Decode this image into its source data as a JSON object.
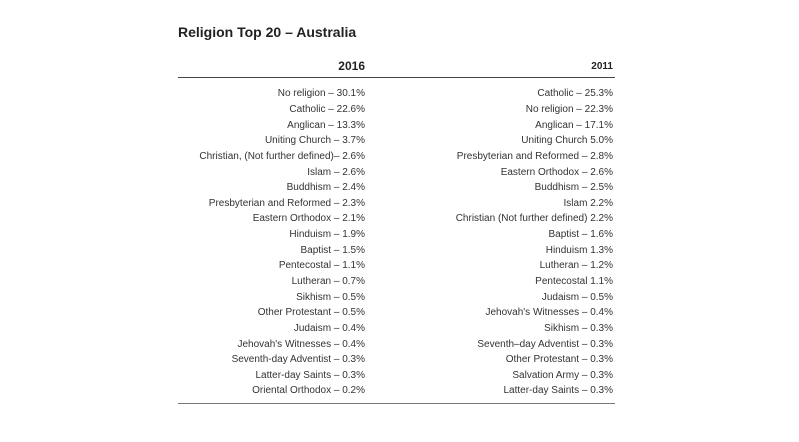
{
  "title": "Religion Top 20 – Australia",
  "columns": [
    "2016",
    "2011"
  ],
  "rows": [
    [
      "No religion – 30.1%",
      "Catholic – 25.3%"
    ],
    [
      "Catholic – 22.6%",
      "No religion – 22.3%"
    ],
    [
      "Anglican – 13.3%",
      "Anglican – 17.1%"
    ],
    [
      "Uniting Church – 3.7%",
      "Uniting Church 5.0%"
    ],
    [
      "Christian, (Not further defined)– 2.6%",
      "Presbyterian and Reformed – 2.8%"
    ],
    [
      "Islam – 2.6%",
      "Eastern Orthodox – 2.6%"
    ],
    [
      "Buddhism – 2.4%",
      "Buddhism – 2.5%"
    ],
    [
      "Presbyterian and Reformed – 2.3%",
      "Islam 2.2%"
    ],
    [
      "Eastern Orthodox – 2.1%",
      "Christian (Not further defined) 2.2%"
    ],
    [
      "Hinduism – 1.9%",
      "Baptist – 1.6%"
    ],
    [
      "Baptist – 1.5%",
      "Hinduism 1.3%"
    ],
    [
      "Pentecostal – 1.1%",
      "Lutheran – 1.2%"
    ],
    [
      "Lutheran – 0.7%",
      "Pentecostal 1.1%"
    ],
    [
      "Sikhism – 0.5%",
      "Judaism – 0.5%"
    ],
    [
      "Other Protestant – 0.5%",
      "Jehovah's Witnesses – 0.4%"
    ],
    [
      "Judaism – 0.4%",
      "Sikhism – 0.3%"
    ],
    [
      "Jehovah's Witnesses – 0.4%",
      "Seventh–day Adventist – 0.3%"
    ],
    [
      "Seventh-day Adventist – 0.3%",
      "Other Protestant – 0.3%"
    ],
    [
      "Latter-day Saints – 0.3%",
      "Salvation Army – 0.3%"
    ],
    [
      "Oriental Orthodox – 0.2%",
      "Latter-day Saints – 0.3%"
    ]
  ]
}
